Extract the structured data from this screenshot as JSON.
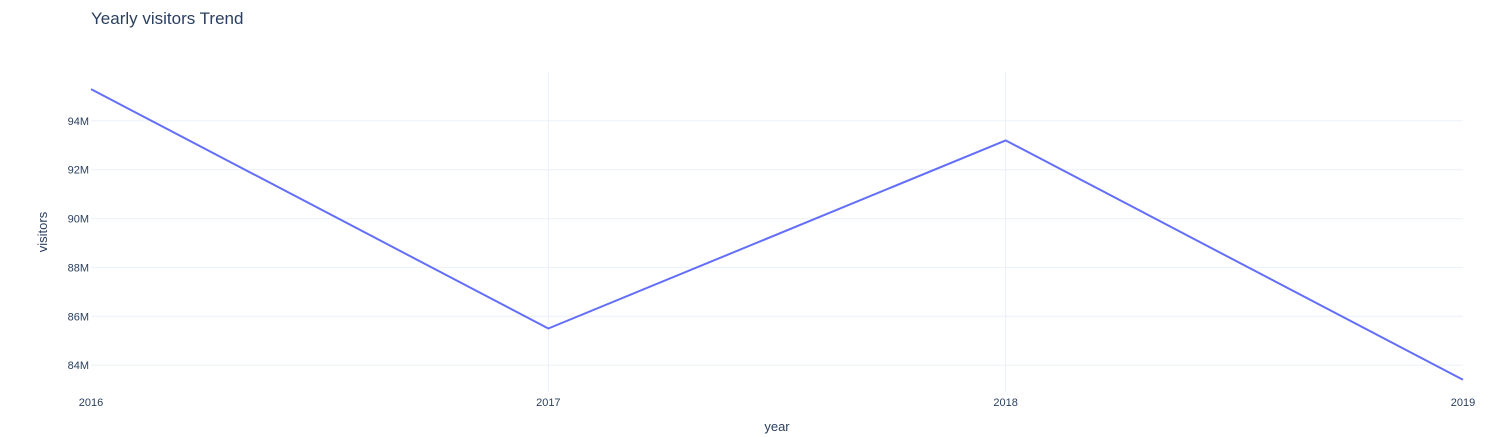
{
  "chart_data": {
    "type": "line",
    "title": "Yearly visitors Trend",
    "xlabel": "year",
    "ylabel": "visitors",
    "x": [
      2016,
      2017,
      2018,
      2019
    ],
    "x_tick_labels": [
      "2016",
      "2017",
      "2018",
      "2019"
    ],
    "series": [
      {
        "values": [
          95300000,
          85500000,
          93200000,
          83400000
        ],
        "color": "#636efa"
      }
    ],
    "y_ticks": [
      84000000,
      86000000,
      88000000,
      90000000,
      92000000,
      94000000
    ],
    "y_tick_labels": [
      "84M",
      "86M",
      "88M",
      "90M",
      "92M",
      "94M"
    ],
    "xlim": [
      2016,
      2019
    ],
    "ylim": [
      82900000,
      96000000
    ],
    "grid": true,
    "legend": "none"
  },
  "colors": {
    "grid": "#ebf0f8",
    "text": "#2a3f5f",
    "line": "#636efa",
    "background": "#ffffff"
  }
}
